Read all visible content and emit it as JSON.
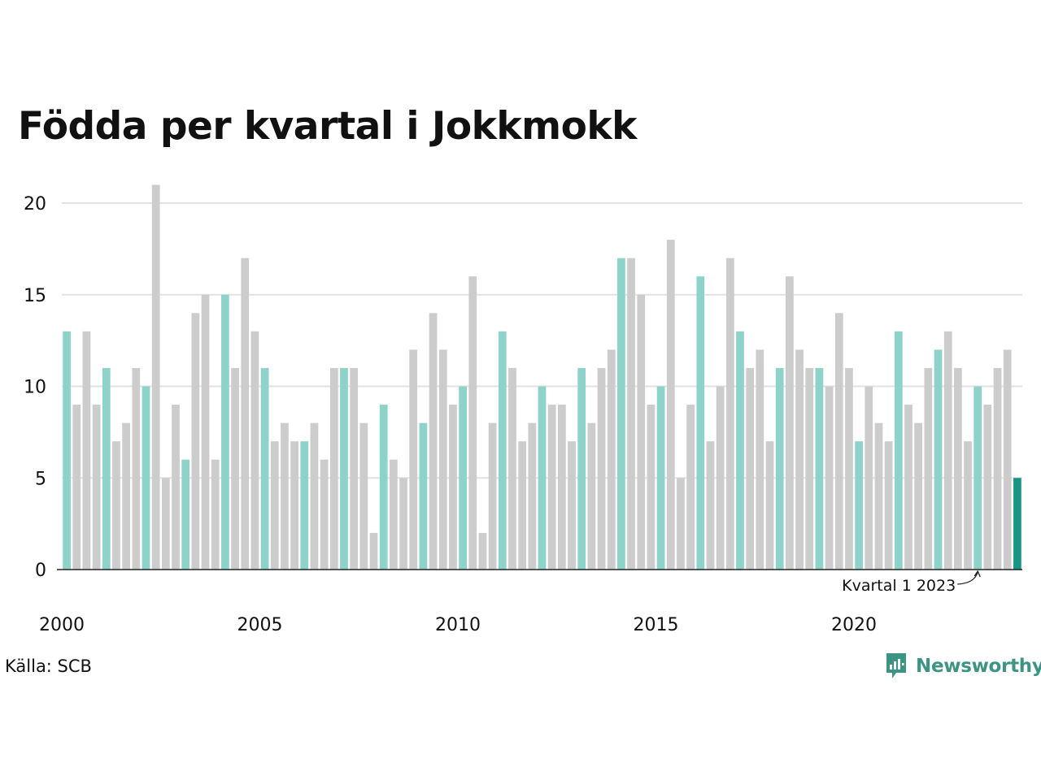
{
  "chart_data": {
    "type": "bar",
    "title": "Födda per kvartal i Jokkmokk",
    "xlabel": "",
    "ylabel": "",
    "ylim": [
      0,
      21
    ],
    "yticks": [
      0,
      5,
      10,
      15,
      20
    ],
    "grid": true,
    "start_year": 2000,
    "quarters_per_year": 4,
    "x_tick_labels": [
      "2000",
      "2005",
      "2010",
      "2015",
      "2020"
    ],
    "x_tick_years": [
      2000,
      2005,
      2010,
      2015,
      2020
    ],
    "values": [
      13,
      9,
      13,
      9,
      11,
      7,
      8,
      11,
      10,
      21,
      5,
      9,
      6,
      14,
      15,
      6,
      15,
      11,
      17,
      13,
      11,
      7,
      8,
      7,
      7,
      8,
      6,
      11,
      11,
      11,
      8,
      2,
      9,
      6,
      5,
      12,
      8,
      14,
      12,
      9,
      10,
      16,
      2,
      8,
      13,
      11,
      7,
      8,
      10,
      9,
      9,
      7,
      11,
      8,
      11,
      12,
      17,
      17,
      15,
      9,
      10,
      18,
      5,
      9,
      16,
      7,
      10,
      17,
      13,
      11,
      12,
      7,
      11,
      16,
      12,
      11,
      11,
      10,
      14,
      11,
      7,
      10,
      8,
      7,
      13,
      9,
      8,
      11,
      12,
      13,
      11,
      7,
      10,
      9,
      11,
      12,
      5
    ],
    "highlight_quarter": 1,
    "annotation": "Kvartal 1 2023",
    "annotation_index": 92,
    "colors": {
      "highlight": "#8ed3c9",
      "other": "#cccccc",
      "latest": "#1a9484",
      "grid": "#e2e2e2",
      "axis": "#222222"
    }
  },
  "footer": {
    "source": "Källa: SCB",
    "brand": "Newsworthy"
  }
}
